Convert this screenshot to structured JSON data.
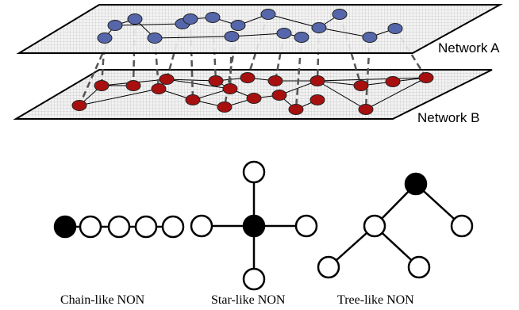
{
  "networks": {
    "a_label": "Network A",
    "b_label": "Network B",
    "colors": {
      "a_node": "#5566aa",
      "b_node": "#a81010",
      "plane": "#ebebeb"
    }
  },
  "structures": {
    "chain_label": "Chain-like NON",
    "star_label": "Star-like NON",
    "tree_label": "Tree-like NON",
    "colors": {
      "root": "#000000",
      "node": "#ffffff"
    }
  }
}
